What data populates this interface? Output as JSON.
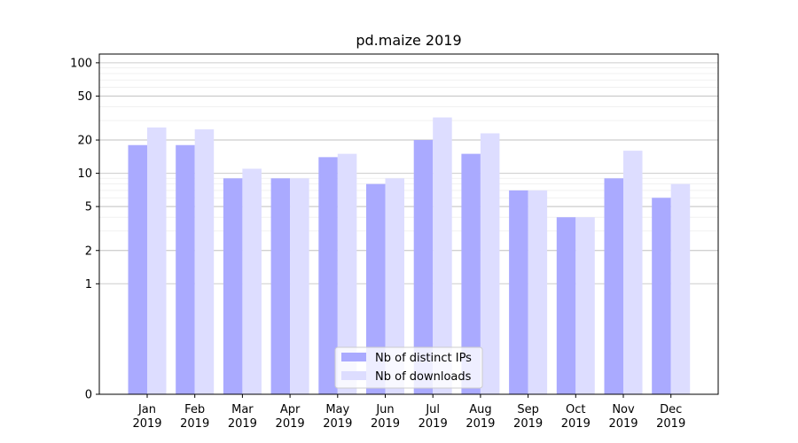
{
  "chart_data": {
    "type": "bar",
    "title": "pd.maize 2019",
    "xlabel": "",
    "ylabel": "",
    "yscale": "symlog",
    "ytick_labels": [
      "0",
      "1",
      "2",
      "5",
      "10",
      "20",
      "50",
      "100"
    ],
    "ytick_values": [
      0,
      1,
      2,
      5,
      10,
      20,
      50,
      100
    ],
    "ylim": [
      0,
      120
    ],
    "grid": "horizontal",
    "legend_position": "bottom-center",
    "categories": [
      [
        "Jan",
        "2019"
      ],
      [
        "Feb",
        "2019"
      ],
      [
        "Mar",
        "2019"
      ],
      [
        "Apr",
        "2019"
      ],
      [
        "May",
        "2019"
      ],
      [
        "Jun",
        "2019"
      ],
      [
        "Jul",
        "2019"
      ],
      [
        "Aug",
        "2019"
      ],
      [
        "Sep",
        "2019"
      ],
      [
        "Oct",
        "2019"
      ],
      [
        "Nov",
        "2019"
      ],
      [
        "Dec",
        "2019"
      ]
    ],
    "series": [
      {
        "name": "Nb of distinct IPs",
        "color": "#aaaaff",
        "values": [
          18,
          18,
          9,
          9,
          14,
          8,
          20,
          15,
          7,
          4,
          9,
          6
        ]
      },
      {
        "name": "Nb of downloads",
        "color": "#ddddff",
        "values": [
          26,
          25,
          11,
          9,
          15,
          9,
          32,
          23,
          7,
          4,
          16,
          8
        ]
      }
    ]
  }
}
